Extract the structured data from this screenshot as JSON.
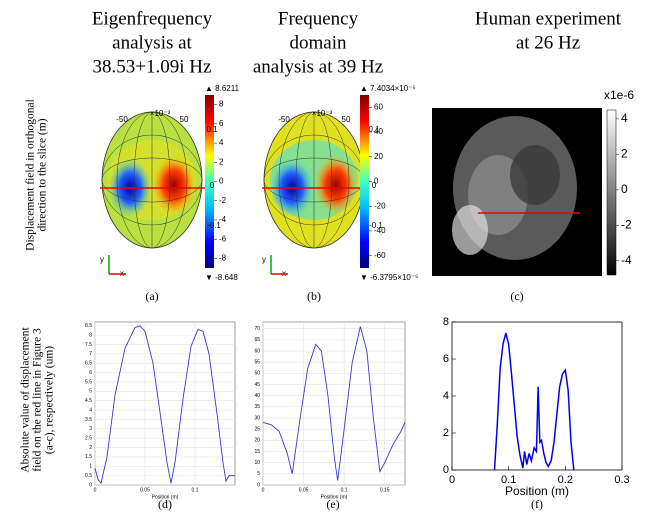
{
  "titles": [
    [
      "Eigenfrequency",
      "analysis at",
      "38.53+1.09i Hz"
    ],
    [
      "Frequency",
      "domain",
      "analysis at 39 Hz"
    ],
    [
      "Human experiment",
      "at 26 Hz"
    ]
  ],
  "row_labels": [
    [
      "Displacement field in orthogonal",
      "direction to the slice (m)"
    ],
    [
      "Absolute value of displacement",
      "field on the red line in Figure 3",
      "(a-c), respectively (um)"
    ]
  ],
  "captions": [
    "(a)",
    "(b)",
    "(c)",
    "(d)",
    "(e)",
    "(f)"
  ],
  "head_labels": [
    [
      "-50",
      "×10⁻³",
      "50",
      "0.1",
      "0",
      "-0.1",
      "y",
      "x"
    ],
    [
      "-50",
      "×10⁻³",
      "50",
      "0.1",
      "0",
      "-0.1",
      "y",
      "x"
    ]
  ],
  "colorbars": [
    {
      "max_label": "▲ 8.6211",
      "min_label": "▼ -8.648",
      "range": [
        -9,
        9
      ],
      "ticks": [
        8,
        6,
        4,
        2,
        0,
        -2,
        -4,
        -6,
        -8
      ]
    },
    {
      "max_label": "▲ 7.4034×10⁻⁵",
      "min_label": "▼ -6.3795×10⁻⁵",
      "range": [
        -70,
        70
      ],
      "ticks": [
        60,
        40,
        20,
        0,
        -20,
        -40,
        -60
      ]
    },
    {
      "unit": "x1e-6",
      "range": [
        -4.8,
        4.5
      ],
      "ticks": [
        4,
        2,
        0,
        -2,
        -4
      ]
    }
  ],
  "chart_data": [
    {
      "type": "line",
      "x": [
        0,
        0.003,
        0.006,
        0.012,
        0.02,
        0.03,
        0.04,
        0.045,
        0.05,
        0.058,
        0.066,
        0.072,
        0.076,
        0.08,
        0.088,
        0.096,
        0.103,
        0.108,
        0.114,
        0.122,
        0.128,
        0.131,
        0.134,
        0.14
      ],
      "series": [
        {
          "color": "#3a3ad0",
          "values": [
            0.9,
            0.3,
            0.1,
            1.5,
            4.8,
            7.3,
            8.4,
            8.5,
            8.2,
            6.5,
            3.5,
            1.2,
            0.1,
            1.2,
            4.6,
            7.4,
            8.3,
            8.2,
            7.0,
            3.8,
            1.2,
            0.2,
            0.5,
            0.5
          ]
        }
      ],
      "xlabel": "Position (m)",
      "xlim": [
        0,
        0.14
      ],
      "ylim": [
        0,
        8.7
      ],
      "xticks": [
        0,
        0.05,
        0.1
      ],
      "yticks": [
        0,
        0.5,
        1,
        1.5,
        2,
        2.5,
        3,
        3.5,
        4,
        4.5,
        5,
        5.5,
        6,
        6.5,
        7,
        7.5,
        8,
        8.5
      ],
      "grid": true
    },
    {
      "type": "line",
      "x": [
        0,
        0.01,
        0.02,
        0.03,
        0.036,
        0.045,
        0.055,
        0.065,
        0.072,
        0.08,
        0.088,
        0.092,
        0.1,
        0.11,
        0.12,
        0.128,
        0.136,
        0.144,
        0.15,
        0.16,
        0.17,
        0.175
      ],
      "series": [
        {
          "color": "#3a3ad0",
          "values": [
            28,
            27,
            24,
            14,
            5,
            28,
            52,
            63,
            60,
            40,
            12,
            2,
            25,
            55,
            71,
            60,
            30,
            6,
            10,
            18,
            24,
            28
          ]
        }
      ],
      "xlabel": "Position (m)",
      "xlim": [
        0,
        0.175
      ],
      "ylim": [
        0,
        73
      ],
      "xticks": [
        0,
        0.05,
        0.1,
        0.15
      ],
      "yticks": [
        0,
        5,
        10,
        15,
        20,
        25,
        30,
        35,
        40,
        45,
        50,
        55,
        60,
        65,
        70
      ],
      "grid": true
    },
    {
      "type": "line",
      "x": [
        0.075,
        0.08,
        0.085,
        0.09,
        0.095,
        0.1,
        0.105,
        0.11,
        0.115,
        0.12,
        0.125,
        0.128,
        0.132,
        0.136,
        0.14,
        0.145,
        0.149,
        0.152,
        0.155,
        0.158,
        0.162,
        0.166,
        0.17,
        0.175,
        0.18,
        0.185,
        0.19,
        0.195,
        0.2,
        0.205,
        0.21,
        0.215
      ],
      "series": [
        {
          "color": "#0000ee",
          "values": [
            0,
            2.5,
            5.5,
            6.8,
            7.4,
            6.8,
            5.2,
            3.5,
            1.8,
            0.8,
            0.1,
            1.0,
            0.3,
            0.9,
            0.5,
            1.2,
            1.0,
            4.5,
            1.5,
            1.6,
            0.9,
            0.4,
            0.2,
            0.5,
            1.5,
            3.0,
            4.5,
            5.2,
            5.4,
            4.3,
            1.5,
            0
          ]
        }
      ],
      "xlabel": "Position (m)",
      "xlim": [
        0,
        0.3
      ],
      "ylim": [
        0,
        8
      ],
      "xticks": [
        0,
        0.1,
        0.2,
        0.3
      ],
      "yticks": [
        0,
        2,
        4,
        6,
        8
      ],
      "grid": false
    }
  ]
}
